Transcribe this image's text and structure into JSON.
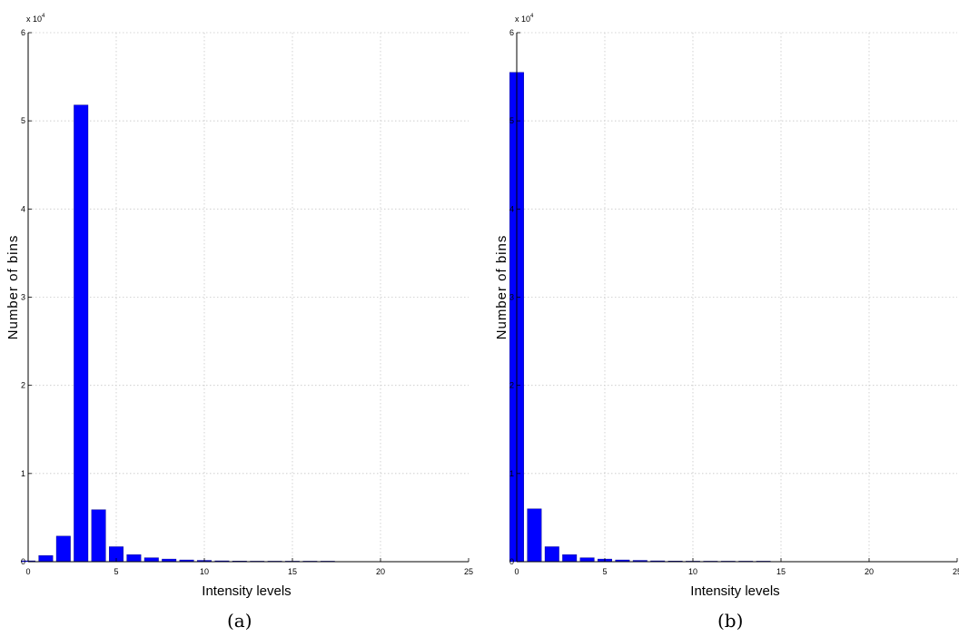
{
  "chart_data": [
    {
      "type": "bar",
      "panel_label": "(a)",
      "xlabel": "Intensity levels",
      "ylabel": "Number of bins",
      "y_exponent_label": "x 10",
      "y_exponent": "4",
      "x_ticks": [
        0,
        5,
        10,
        15,
        20,
        25
      ],
      "y_ticks": [
        0,
        1,
        2,
        3,
        4,
        5,
        6
      ],
      "xlim": [
        0,
        25
      ],
      "ylim": [
        0,
        6
      ],
      "y_unit_multiplier": 10000,
      "grid": true,
      "color": "#0000ff",
      "x": [
        0,
        1,
        2,
        3,
        4,
        5,
        6,
        7,
        8,
        9,
        10,
        11,
        12,
        13,
        14,
        15,
        16,
        17
      ],
      "values": [
        0.01,
        0.07,
        0.29,
        5.18,
        0.59,
        0.17,
        0.08,
        0.045,
        0.03,
        0.02,
        0.015,
        0.01,
        0.008,
        0.006,
        0.004,
        0.003,
        0.002,
        0.002
      ]
    },
    {
      "type": "bar",
      "panel_label": "(b)",
      "xlabel": "Intensity levels",
      "ylabel": "Number of bins",
      "y_exponent_label": "x 10",
      "y_exponent": "4",
      "x_ticks": [
        0,
        5,
        10,
        15,
        20,
        25
      ],
      "y_ticks": [
        0,
        1,
        2,
        3,
        4,
        5,
        6
      ],
      "xlim": [
        0,
        25
      ],
      "ylim": [
        0,
        6
      ],
      "y_unit_multiplier": 10000,
      "grid": true,
      "color": "#0000ff",
      "x": [
        0,
        1,
        2,
        3,
        4,
        5,
        6,
        7,
        8,
        9,
        10,
        11,
        12,
        13,
        14
      ],
      "values": [
        5.55,
        0.6,
        0.17,
        0.08,
        0.045,
        0.03,
        0.02,
        0.015,
        0.01,
        0.008,
        0.006,
        0.004,
        0.003,
        0.002,
        0.002
      ]
    }
  ]
}
